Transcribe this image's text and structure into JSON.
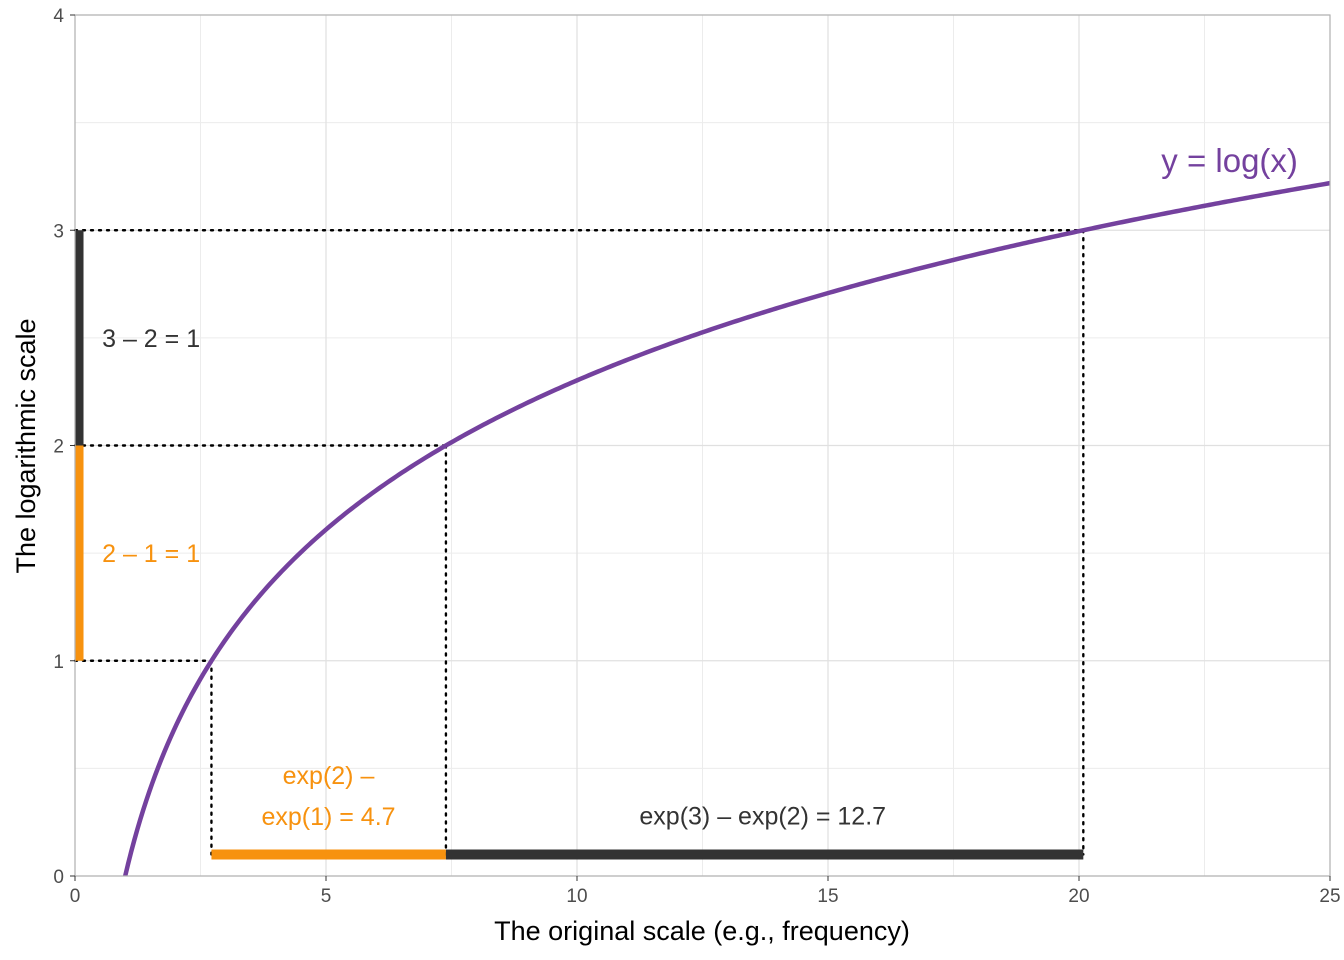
{
  "chart_data": {
    "type": "line",
    "title": "",
    "xlabel": "The original scale (e.g., frequency)",
    "ylabel": "The logarithmic scale",
    "xlim": [
      0,
      25
    ],
    "ylim": [
      0,
      4
    ],
    "xticks": [
      0,
      5,
      10,
      15,
      20,
      25
    ],
    "yticks": [
      0,
      1,
      2,
      3,
      4
    ],
    "grid": true,
    "series": [
      {
        "name": "y = log(x)",
        "function": "log",
        "x": [
          1,
          1.25,
          1.5,
          2,
          2.5,
          3,
          4,
          5,
          6,
          7,
          8,
          10,
          12,
          14,
          16,
          18,
          20,
          22,
          25
        ],
        "y": [
          0,
          0.223,
          0.405,
          0.693,
          0.916,
          1.099,
          1.386,
          1.609,
          1.792,
          1.946,
          2.079,
          2.303,
          2.485,
          2.639,
          2.773,
          2.89,
          2.996,
          3.091,
          3.219
        ],
        "color": "#74419e"
      }
    ],
    "curve_label": "y = log(x)",
    "curve_label_anchor": {
      "x": 23,
      "y": 3.27
    },
    "guide_points": [
      {
        "x": 2.718,
        "y": 1
      },
      {
        "x": 7.389,
        "y": 2
      },
      {
        "x": 20.086,
        "y": 3
      }
    ],
    "segments": [
      {
        "axis": "y",
        "from": 1,
        "to": 2,
        "color": "#f7920f",
        "label": "2 – 1 = 1",
        "label_at": {
          "x": 0.5,
          "y": 1.5
        }
      },
      {
        "axis": "y",
        "from": 2,
        "to": 3,
        "color": "#333333",
        "label": "3 – 2 = 1",
        "label_at": {
          "x": 0.5,
          "y": 2.5
        }
      },
      {
        "axis": "x",
        "from": 2.718,
        "to": 7.389,
        "at": 0.1,
        "color": "#f7920f",
        "label_lines": [
          "exp(2) –",
          "exp(1) = 4.7"
        ],
        "label_at": {
          "x": 5.05,
          "y": 0.47
        }
      },
      {
        "axis": "x",
        "from": 7.389,
        "to": 20.086,
        "at": 0.1,
        "color": "#333333",
        "label_lines": [
          "exp(3) – exp(2) = 12.7"
        ],
        "label_at": {
          "x": 13.7,
          "y": 0.28
        }
      }
    ],
    "colors": {
      "log_curve": "#74419e",
      "orange": "#f7920f",
      "dark": "#333333",
      "grid": "#e0e0e0",
      "panel_border": "#b3b3b3"
    }
  }
}
